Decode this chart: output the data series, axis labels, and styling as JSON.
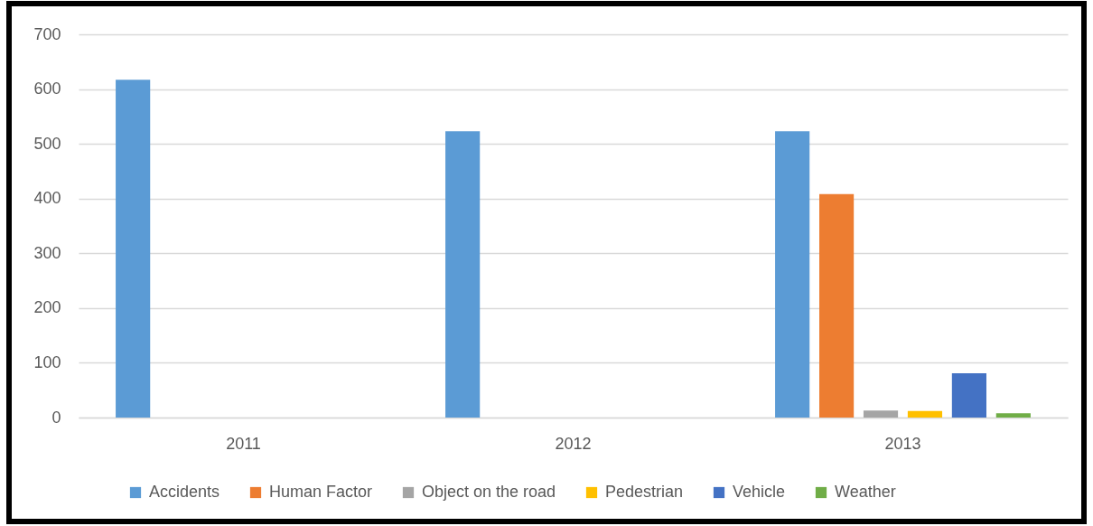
{
  "chart_data": {
    "type": "bar",
    "categories": [
      "2011",
      "2012",
      "2013"
    ],
    "series": [
      {
        "name": "Accidents",
        "color": "#5b9bd5",
        "values": [
          617,
          523,
          523
        ]
      },
      {
        "name": "Human Factor",
        "color": "#ed7d31",
        "values": [
          null,
          null,
          408
        ]
      },
      {
        "name": "Object on the road",
        "color": "#a5a5a5",
        "values": [
          null,
          null,
          13
        ]
      },
      {
        "name": "Pedestrian",
        "color": "#ffc000",
        "values": [
          null,
          null,
          12
        ]
      },
      {
        "name": "Vehicle",
        "color": "#4472c4",
        "values": [
          null,
          null,
          81
        ]
      },
      {
        "name": "Weather",
        "color": "#70ad47",
        "values": [
          null,
          null,
          8
        ]
      }
    ],
    "ylim": [
      0,
      700
    ],
    "yticks": [
      0,
      100,
      200,
      300,
      400,
      500,
      600,
      700
    ],
    "grid": "y",
    "legend": "bottom"
  }
}
